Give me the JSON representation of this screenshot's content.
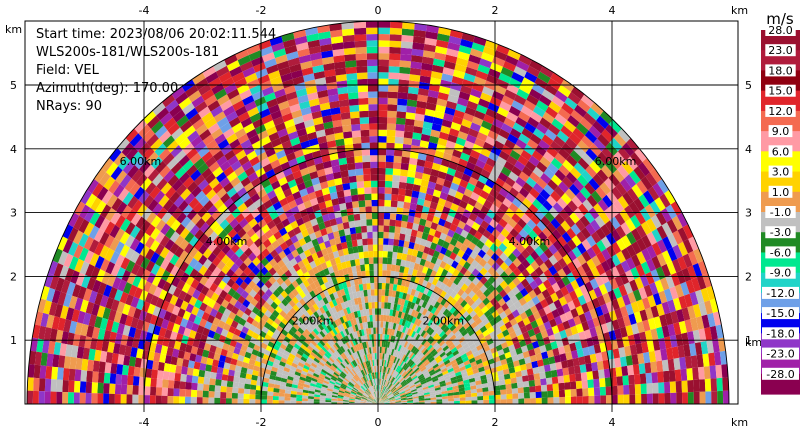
{
  "chart_data": {
    "type": "heatmap",
    "subtype": "polar-ppi",
    "info": {
      "start_time": "Start time: 2023/08/06 20:02:11.544",
      "instrument": "WLS200s-181/WLS200s-181",
      "field": "Field: VEL",
      "azimuth": "Azimuth(deg): 170.00",
      "nrays": "NRays: 90"
    },
    "x_axis": {
      "unit": "km",
      "ticks": [
        -4,
        -2,
        0,
        2,
        4
      ],
      "range": [
        -6,
        6
      ]
    },
    "y_axis": {
      "unit": "km",
      "ticks": [
        1,
        2,
        3,
        4,
        5
      ],
      "range": [
        0,
        6
      ]
    },
    "range_rings_km": [
      2,
      4,
      6
    ],
    "ring_labels": [
      "2.00km",
      "4.00km",
      "6.00km"
    ],
    "max_range_km": 6.0,
    "colorbar": {
      "unit": "m/s",
      "levels": [
        "28.0",
        "23.0",
        "18.0",
        "15.0",
        "12.0",
        "9.0",
        "6.0",
        "3.0",
        "1.0",
        "-1.0",
        "-3.0",
        "-6.0",
        "-9.0",
        "-12.0",
        "-15.0",
        "-18.0",
        "-23.0",
        "-28.0"
      ],
      "colors": [
        "#9a1030",
        "#b01c3c",
        "#8f0010",
        "#e0252b",
        "#f46a50",
        "#ff9aa4",
        "#ffff00",
        "#ffd200",
        "#ef9b4f",
        "#c0c0c0",
        "#208a24",
        "#00e890",
        "#20d4c8",
        "#6ea0e8",
        "#0000ee",
        "#8f36c8",
        "#a020a8",
        "#8a0050"
      ]
    },
    "rings": [
      {
        "r0": 0.0,
        "r1": 1.2,
        "pal": [
          "#c0c0c0",
          "#ef9b4f",
          "#208a24",
          "#00e890"
        ],
        "w": [
          5,
          3,
          3,
          1
        ]
      },
      {
        "r0": 1.2,
        "r1": 2.0,
        "pal": [
          "#c0c0c0",
          "#ef9b4f",
          "#208a24",
          "#00e890",
          "#ffd200"
        ],
        "w": [
          5,
          4,
          3,
          1,
          1
        ]
      },
      {
        "r0": 2.0,
        "r1": 2.5,
        "pal": [
          "#c0c0c0",
          "#ef9b4f",
          "#208a24",
          "#ffd200",
          "#ffff00"
        ],
        "w": [
          4,
          4,
          3,
          2,
          1
        ]
      },
      {
        "r0": 2.5,
        "r1": 3.1,
        "pal": [
          "#c0c0c0",
          "#ef9b4f",
          "#208a24",
          "#b01c3c",
          "#e0252b",
          "#ffd200",
          "#8f36c8",
          "#0000ee"
        ],
        "w": [
          3,
          3,
          2,
          2,
          1,
          1,
          1,
          1
        ]
      },
      {
        "r0": 3.1,
        "r1": 6.0,
        "pal": [
          "#9a1030",
          "#b01c3c",
          "#e0252b",
          "#f46a50",
          "#ff9aa4",
          "#ffff00",
          "#ffd200",
          "#ef9b4f",
          "#c0c0c0",
          "#208a24",
          "#00e890",
          "#20d4c8",
          "#6ea0e8",
          "#0000ee",
          "#8f36c8",
          "#a020a8",
          "#8a0050"
        ],
        "w": [
          4,
          3,
          3,
          2,
          2,
          2,
          2,
          2,
          1,
          1,
          1,
          1,
          1,
          1,
          1,
          2,
          2
        ]
      }
    ]
  }
}
